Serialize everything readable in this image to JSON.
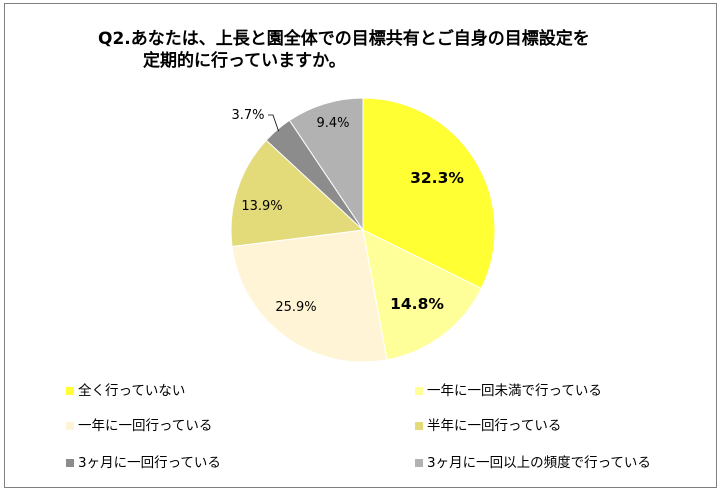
{
  "title_line1": "Q2.あなたは、上長と園全体での目標共有とご自身の目標設定を",
  "title_line2": "定期的に行っていますか。",
  "chart_data": {
    "type": "pie",
    "title": "Q2.あなたは、上長と園全体での目標共有とご自身の目標設定を定期的に行っていますか。",
    "legend_position": "bottom",
    "slices": [
      {
        "label": "全く行っていない",
        "value": 32.3,
        "display": "32.3%",
        "color": "#FFFF33",
        "bold": true
      },
      {
        "label": "一年に一回未満で行っている",
        "value": 14.8,
        "display": "14.8%",
        "color": "#FFFF99",
        "bold": true
      },
      {
        "label": "一年に一回行っている",
        "value": 25.9,
        "display": "25.9%",
        "color": "#FFF5D6",
        "bold": false
      },
      {
        "label": "半年に一回行っている",
        "value": 13.9,
        "display": "13.9%",
        "color": "#E3DA7A",
        "bold": false
      },
      {
        "label": "3ヶ月に一回行っている",
        "value": 3.7,
        "display": "3.7%",
        "color": "#8C8C8C",
        "bold": false
      },
      {
        "label": "3ヶ月に一回以上の頻度で行っている",
        "value": 9.4,
        "display": "9.4%",
        "color": "#B2B2B2",
        "bold": false
      }
    ]
  }
}
